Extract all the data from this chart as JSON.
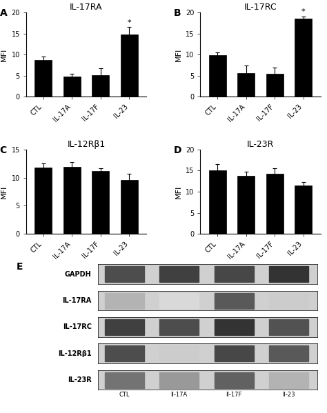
{
  "panels": {
    "A": {
      "title": "IL-17RA",
      "categories": [
        "CTL",
        "IL-17A",
        "IL-17F",
        "IL-23"
      ],
      "values": [
        8.8,
        4.8,
        5.2,
        14.7
      ],
      "errors": [
        0.8,
        0.6,
        1.5,
        1.8
      ],
      "ylim": [
        0,
        20
      ],
      "yticks": [
        0,
        5,
        10,
        15,
        20
      ],
      "ylabel": "MFI",
      "significance": [
        false,
        false,
        false,
        true
      ]
    },
    "B": {
      "title": "IL-17RC",
      "categories": [
        "CTL",
        "IL-17A",
        "IL-17F",
        "IL-23"
      ],
      "values": [
        9.8,
        5.6,
        5.4,
        18.5
      ],
      "errors": [
        0.7,
        1.8,
        1.6,
        0.5
      ],
      "ylim": [
        0,
        20
      ],
      "yticks": [
        0,
        5,
        10,
        15,
        20
      ],
      "ylabel": "MFI",
      "significance": [
        false,
        false,
        false,
        true
      ]
    },
    "C": {
      "title": "IL-12Rβ1",
      "categories": [
        "CTL",
        "IL-17A",
        "IL-17F",
        "IL-23"
      ],
      "values": [
        11.8,
        11.9,
        11.2,
        9.6
      ],
      "errors": [
        0.7,
        0.9,
        0.5,
        1.1
      ],
      "ylim": [
        0,
        15
      ],
      "yticks": [
        0,
        5,
        10,
        15
      ],
      "ylabel": "MFI",
      "significance": [
        false,
        false,
        false,
        false
      ]
    },
    "D": {
      "title": "IL-23R",
      "categories": [
        "CTL",
        "IL-17A",
        "IL-17F",
        "IL-23"
      ],
      "values": [
        15.1,
        13.8,
        14.2,
        11.4
      ],
      "errors": [
        1.5,
        1.0,
        1.3,
        0.9
      ],
      "ylim": [
        0,
        20
      ],
      "yticks": [
        0,
        5,
        10,
        15,
        20
      ],
      "ylabel": "MFI",
      "significance": [
        false,
        false,
        false,
        false
      ]
    }
  },
  "bar_color": "#000000",
  "bar_width": 0.6,
  "western_blot_labels": [
    "GAPDH",
    "IL-17RA",
    "IL-17RC",
    "IL-12Rβ1",
    "IL-23R"
  ],
  "western_blot_xticks": [
    "CTL",
    "Il-17A",
    "Il-17F",
    "Il-23"
  ],
  "panel_label_fontsize": 10,
  "axis_label_fontsize": 8,
  "tick_label_fontsize": 7,
  "title_fontsize": 9
}
